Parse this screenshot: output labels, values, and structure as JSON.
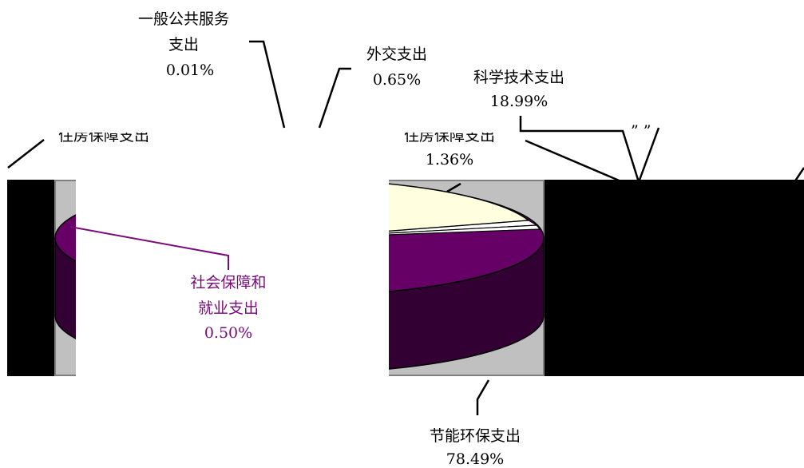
{
  "chart_data": {
    "type": "pie",
    "slices": [
      {
        "name": "一般公共服务支出",
        "label_lines": [
          "一般公共服务",
          "支出"
        ],
        "value": 0.01,
        "value_text": "0.01%",
        "color": "#ffffff"
      },
      {
        "name": "外交支出",
        "label_lines": [
          "外交支出"
        ],
        "value": 0.65,
        "value_text": "0.65%",
        "color": "#ffffff"
      },
      {
        "name": "科学技术支出",
        "label_lines": [
          "科学技术支出"
        ],
        "value": 18.99,
        "value_text": "18.99%",
        "color": "#ffffe0"
      },
      {
        "name": "住房保障支出",
        "label_lines": [
          "住房保障支出"
        ],
        "value": 1.36,
        "value_text": "1.36%",
        "color": "#ffffff"
      },
      {
        "name": "节能环保支出",
        "label_lines": [
          "节能环保支出"
        ],
        "value": 78.49,
        "value_text": "78.49%",
        "color": "#660066"
      },
      {
        "name": "社会保障和就业支出",
        "label_lines": [
          "社会保障和",
          "就业支出"
        ],
        "value": 0.5,
        "value_text": "0.50%",
        "color": "#660066"
      }
    ],
    "partial_label_left": "住房保障支出",
    "style": "3d-pie",
    "plot_background": "#c0c0c0",
    "legend": "none"
  }
}
